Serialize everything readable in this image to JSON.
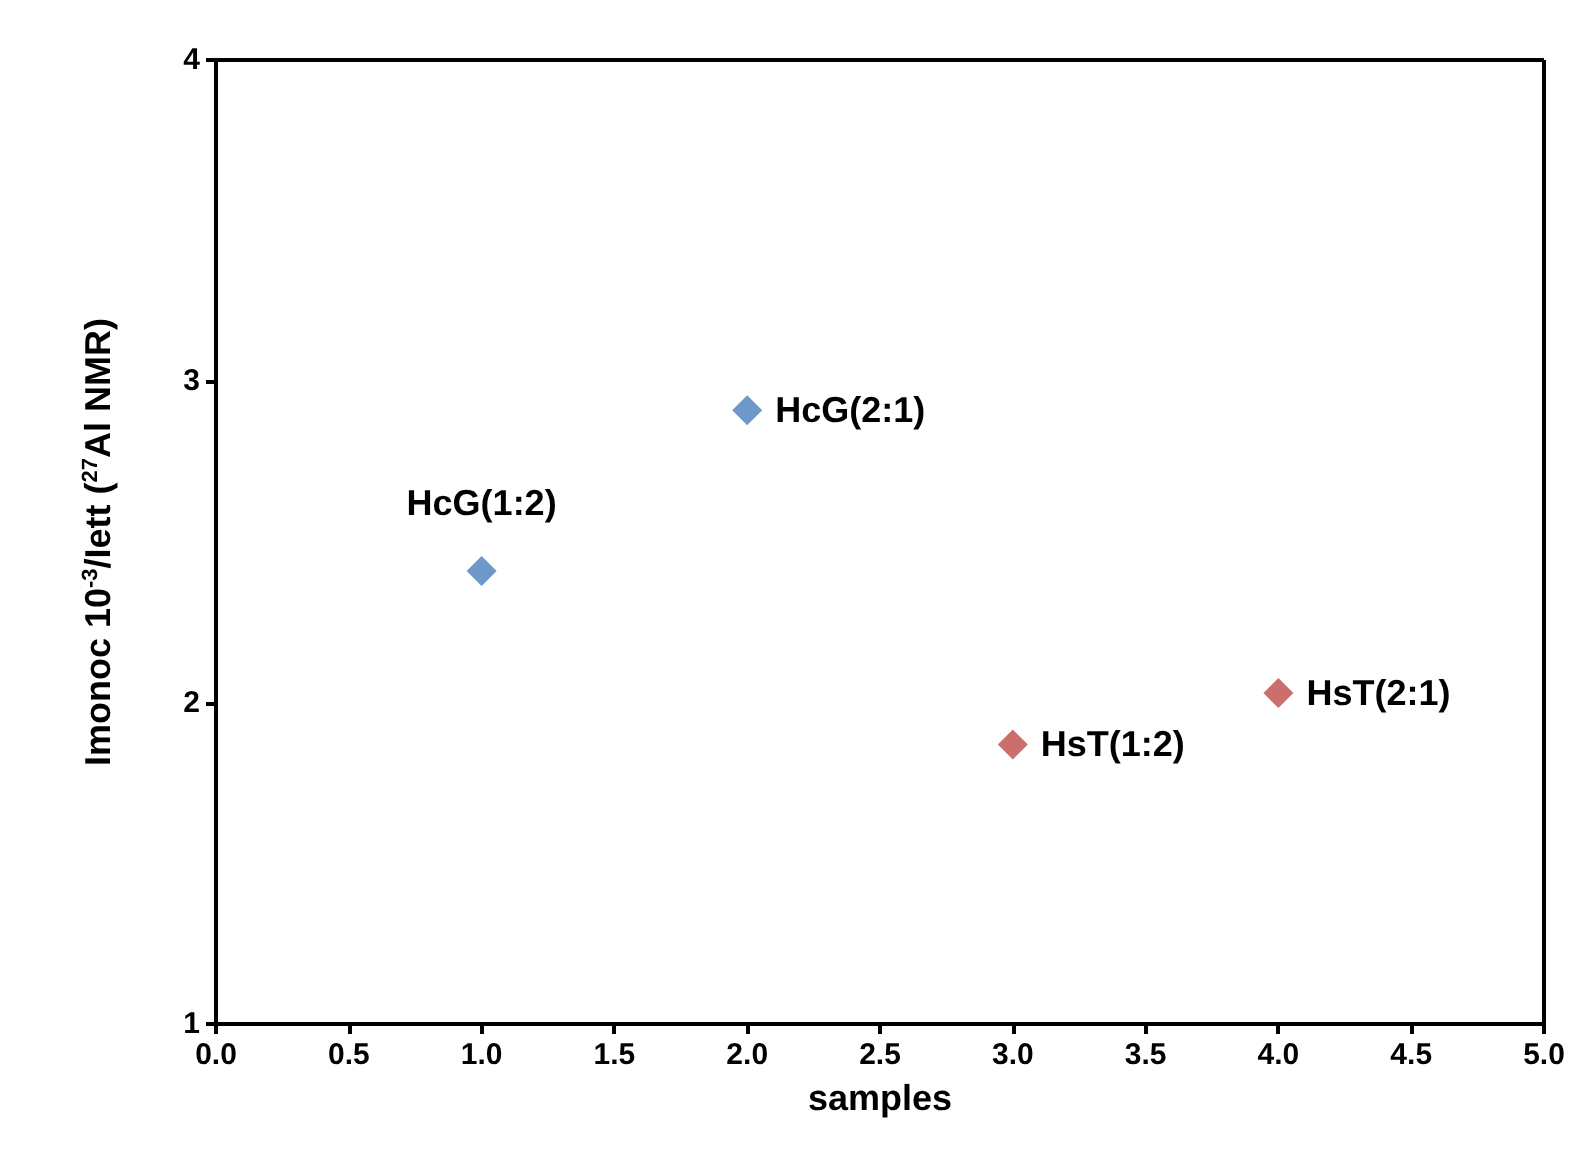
{
  "chart_data": {
    "type": "scatter",
    "xlabel": "samples",
    "ylabel": "Imonoc 10$^{-3}$/Iett ($^{27}$Al NMR)",
    "marker": "diamond",
    "grid": false,
    "series": [
      {
        "color": "#4a7ebb",
        "x": [
          1,
          2
        ],
        "values": [
          2.41,
          2.91
        ]
      },
      {
        "color": "#be4b48",
        "x": [
          3,
          4
        ],
        "values": [
          1.87,
          2.03
        ]
      }
    ],
    "annotations": [
      {
        "text": "HcG(1:2)",
        "x": 1,
        "y": 2.41
      },
      {
        "text": "HcG(2:1)",
        "x": 2,
        "y": 2.91
      },
      {
        "text": "HsT(1:2)",
        "x": 3,
        "y": 1.87
      },
      {
        "text": "HsT(2:1)",
        "x": 4,
        "y": 2.03
      }
    ],
    "xlim": [
      0,
      5
    ],
    "ylim": [
      1,
      4
    ],
    "xticks": [
      {
        "value": 0,
        "label": "0.0"
      },
      {
        "value": 0.5,
        "label": "0.5"
      },
      {
        "value": 1,
        "label": "1.0"
      },
      {
        "value": 1.5,
        "label": "1.5"
      },
      {
        "value": 2,
        "label": "2.0"
      },
      {
        "value": 2.5,
        "label": "2.5"
      },
      {
        "value": 3,
        "label": "3.0"
      },
      {
        "value": 3.5,
        "label": "3.5"
      },
      {
        "value": 4,
        "label": "4.0"
      },
      {
        "value": 4.5,
        "label": "4.5"
      },
      {
        "value": 5,
        "label": "5.0"
      }
    ],
    "yticks": [
      1,
      2,
      3,
      4
    ]
  }
}
